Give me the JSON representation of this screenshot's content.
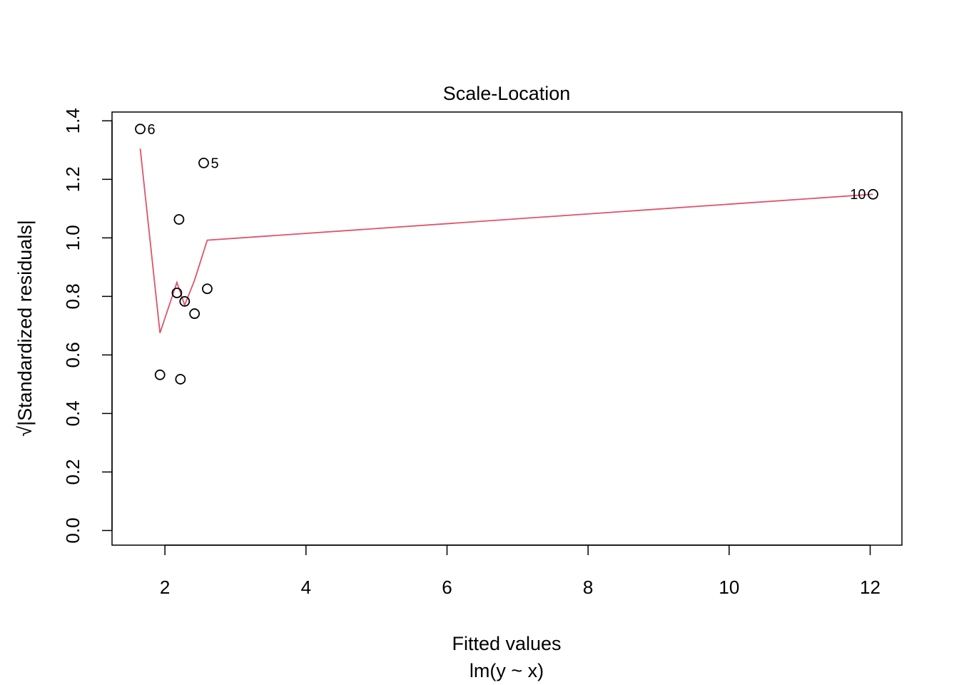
{
  "chart_data": {
    "type": "scatter",
    "title": "Scale-Location",
    "xlabel": "Fitted values",
    "xsublabel": "lm(y ~ x)",
    "ylabel": "√|Standardized residuals|",
    "xlim": [
      1.25,
      12.45
    ],
    "ylim": [
      -0.05,
      1.43
    ],
    "xticks": [
      2,
      4,
      6,
      8,
      10,
      12
    ],
    "yticks": [
      0.0,
      0.2,
      0.4,
      0.6,
      0.8,
      1.0,
      1.2,
      1.4
    ],
    "ytick_labels": [
      "0.0",
      "0.2",
      "0.4",
      "0.6",
      "0.8",
      "1.0",
      "1.2",
      "1.4"
    ],
    "points": [
      {
        "x": 1.65,
        "y": 1.372,
        "label": "6"
      },
      {
        "x": 2.55,
        "y": 1.256,
        "label": "5"
      },
      {
        "x": 12.04,
        "y": 1.149,
        "label": "10"
      },
      {
        "x": 2.2,
        "y": 1.063,
        "label": ""
      },
      {
        "x": 2.6,
        "y": 0.826,
        "label": ""
      },
      {
        "x": 2.17,
        "y": 0.812,
        "label": ""
      },
      {
        "x": 2.28,
        "y": 0.783,
        "label": ""
      },
      {
        "x": 2.42,
        "y": 0.741,
        "label": ""
      },
      {
        "x": 1.93,
        "y": 0.532,
        "label": ""
      },
      {
        "x": 2.22,
        "y": 0.517,
        "label": ""
      }
    ],
    "smoother": {
      "color": "#DF536B",
      "x": [
        1.65,
        1.93,
        2.17,
        2.28,
        2.42,
        2.6,
        12.04
      ],
      "y": [
        1.305,
        0.675,
        0.848,
        0.77,
        0.855,
        0.992,
        1.149
      ]
    },
    "point_color": "#000000",
    "grid": false
  }
}
